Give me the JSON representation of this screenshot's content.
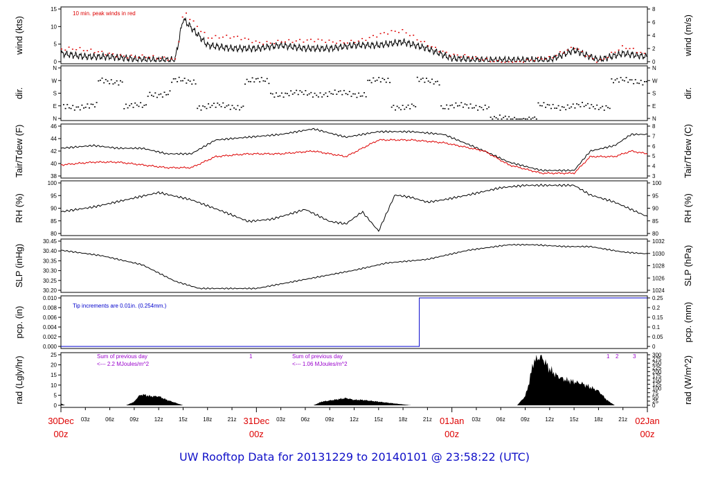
{
  "footer_title": "UW Rooftop Data for 20131229  to  20140101 @ 23:58:22  (UTC)",
  "colors": {
    "primary": "#000000",
    "accent_red": "#dd0000",
    "blue": "#0000cc",
    "purple": "#9900cc"
  },
  "time_axis": {
    "hour_ticks": [
      "03z",
      "06z",
      "09z",
      "12z",
      "15z",
      "18z",
      "21z"
    ],
    "day_labels": [
      {
        "date": "30Dec",
        "hour": "00z"
      },
      {
        "date": "31Dec",
        "hour": "00z"
      },
      {
        "date": "01Jan",
        "hour": "00z"
      },
      {
        "date": "02Jan",
        "hour": "00z"
      }
    ]
  },
  "chart_data": [
    {
      "type": "line",
      "id": "wind",
      "ylabel_left": "wind (kts)",
      "ylabel_right": "wind (m/s)",
      "ylim": [
        0,
        16
      ],
      "yticks_left": [
        "0",
        "5",
        "10",
        "15"
      ],
      "yticks_right": [
        "0",
        "2",
        "4",
        "6",
        "8"
      ],
      "annotation": "10 min. peak winds in red",
      "series": [
        {
          "name": "wind",
          "color": "#000000",
          "x_hours": [
            0,
            6,
            12,
            18,
            24,
            28,
            30,
            36,
            42,
            48,
            54,
            60,
            66,
            72,
            78,
            84,
            90,
            96,
            102,
            108,
            114,
            120,
            126,
            132,
            138,
            144
          ],
          "values": [
            2.5,
            1.5,
            1.5,
            0.8,
            0.5,
            0.5,
            13,
            5,
            4,
            4,
            5,
            4,
            4,
            5,
            5,
            6,
            4,
            1,
            0.5,
            0.5,
            0.5,
            0.5,
            3.5,
            0.5,
            2.5,
            1.5
          ]
        },
        {
          "name": "peak",
          "color": "#dd0000",
          "x_hours": [
            0,
            6,
            12,
            18,
            24,
            28,
            30,
            36,
            42,
            48,
            54,
            60,
            66,
            72,
            78,
            84,
            90,
            96,
            102,
            108,
            114,
            120,
            126,
            132,
            138,
            144
          ],
          "values": [
            4,
            3,
            3,
            2,
            0.5,
            0.5,
            16,
            8,
            7,
            6,
            7,
            6,
            6,
            7,
            8,
            9,
            6,
            2,
            0.5,
            0.5,
            0.5,
            0.5,
            5,
            0.5,
            4,
            2
          ]
        }
      ]
    },
    {
      "type": "scatter",
      "id": "dir",
      "ylabel_left": "dir.",
      "ylabel_right": "dir.",
      "yticks_left": [
        "N",
        "E",
        "S",
        "W",
        "N"
      ],
      "yticks_right": [
        "N",
        "E",
        "S",
        "W",
        "N"
      ],
      "series": [
        {
          "name": "dir",
          "color": "#000000",
          "x_hours": [
            0,
            6,
            12,
            18,
            24,
            30,
            36,
            42,
            48,
            54,
            60,
            66,
            72,
            78,
            84,
            90,
            96,
            102,
            108,
            114,
            120,
            126,
            132,
            138,
            144
          ],
          "values": [
            "E",
            "E",
            "W",
            "E",
            "S",
            "W",
            "E",
            "E",
            "W",
            "S",
            "S",
            "S",
            "S",
            "W",
            "E",
            "W",
            "E",
            "E",
            "N",
            "N",
            "E",
            "E",
            "E",
            "W",
            "W"
          ]
        }
      ]
    },
    {
      "type": "line",
      "id": "temp",
      "ylabel_left": "Tair/Tdew (F)",
      "ylabel_right": "Tair/Tdew (C)",
      "ylim": [
        37.5,
        46.5
      ],
      "yticks_left": [
        "38",
        "40",
        "42",
        "44",
        "46"
      ],
      "yticks_right": [
        "3",
        "4",
        "5",
        "6",
        "7",
        "8"
      ],
      "series": [
        {
          "name": "Tair",
          "color": "#000000",
          "x_hours": [
            0,
            8,
            14,
            20,
            26,
            32,
            38,
            46,
            54,
            62,
            70,
            78,
            86,
            94,
            104,
            110,
            118,
            126,
            130,
            136,
            140,
            144
          ],
          "values": [
            42.5,
            43,
            42.5,
            42.5,
            41.5,
            41.5,
            44,
            44.5,
            45,
            46,
            44.5,
            45.5,
            45.5,
            45,
            42,
            40,
            38.5,
            38.5,
            42,
            43,
            45,
            45
          ]
        },
        {
          "name": "Tdew",
          "color": "#dd0000",
          "x_hours": [
            0,
            8,
            14,
            20,
            26,
            32,
            38,
            46,
            54,
            62,
            70,
            78,
            86,
            94,
            104,
            110,
            118,
            126,
            130,
            136,
            140,
            144
          ],
          "values": [
            39.5,
            40,
            40,
            39.5,
            39,
            39,
            41,
            41.5,
            41.5,
            42,
            41,
            44,
            44,
            43.5,
            42,
            39.5,
            38,
            38,
            41,
            41,
            42,
            41.5
          ]
        }
      ]
    },
    {
      "type": "line",
      "id": "rh",
      "ylabel_left": "RH (%)",
      "ylabel_right": "RH (%)",
      "ylim": [
        79,
        100
      ],
      "yticks_left": [
        "80",
        "85",
        "90",
        "95",
        "100"
      ],
      "yticks_right": [
        "80",
        "85",
        "90",
        "95",
        "100"
      ],
      "series": [
        {
          "name": "RH",
          "color": "#000000",
          "x_hours": [
            0,
            8,
            16,
            24,
            32,
            40,
            46,
            52,
            60,
            66,
            70,
            74,
            78,
            82,
            86,
            90,
            94,
            100,
            108,
            114,
            120,
            126,
            130,
            136,
            144
          ],
          "values": [
            88,
            90,
            93,
            96,
            93,
            88,
            84,
            85,
            89,
            84,
            83,
            88,
            80,
            95,
            94,
            92,
            93,
            95,
            98,
            99,
            99,
            99,
            95,
            92,
            86
          ]
        }
      ]
    },
    {
      "type": "line",
      "id": "slp",
      "ylabel_left": "SLP (inHg)",
      "ylabel_right": "SLP (hPa)",
      "ylim": [
        30.2,
        30.47
      ],
      "yticks_left": [
        "30.20",
        "30.25",
        "30.30",
        "30.35",
        "30.40",
        "30.45"
      ],
      "yticks_right": [
        "1024",
        "1026",
        "1028",
        "1030",
        "1032"
      ],
      "series": [
        {
          "name": "SLP",
          "color": "#000000",
          "x_hours": [
            0,
            10,
            20,
            28,
            34,
            40,
            48,
            60,
            72,
            80,
            90,
            100,
            110,
            116,
            124,
            130,
            138,
            144
          ],
          "values": [
            30.42,
            30.39,
            30.34,
            30.25,
            30.21,
            30.21,
            30.21,
            30.26,
            30.31,
            30.35,
            30.37,
            30.42,
            30.45,
            30.45,
            30.44,
            30.44,
            30.41,
            30.4
          ]
        }
      ]
    },
    {
      "type": "line",
      "id": "pcp",
      "ylabel_left": "pcp. (in)",
      "ylabel_right": "pcp. (mm)",
      "ylim": [
        0,
        0.01
      ],
      "yticks_left": [
        "0.000",
        "0.002",
        "0.004",
        "0.006",
        "0.008",
        "0.010"
      ],
      "yticks_right": [
        "0",
        "0.05",
        "0.1",
        "0.15",
        "0.2",
        "0.25"
      ],
      "annotation": "Tip increments are 0.01in. (0.254mm.)",
      "series": [
        {
          "name": "pcp",
          "color": "#0000cc",
          "x_hours": [
            0,
            88,
            88,
            144
          ],
          "values": [
            0,
            0,
            0.01,
            0.01
          ]
        }
      ]
    },
    {
      "type": "area",
      "id": "rad",
      "ylabel_left": "rad (Lgly/hr)",
      "ylabel_right": "rad (W/m^2)",
      "ylim": [
        0,
        28
      ],
      "yticks_left": [
        "0",
        "5",
        "10",
        "15",
        "20",
        "25"
      ],
      "yticks_right": [
        "0",
        "25",
        "50",
        "75",
        "100",
        "125",
        "150",
        "175",
        "200",
        "225",
        "250",
        "275",
        "300"
      ],
      "annotations": [
        "Sum of previous day",
        "<--- 2.2 MJoules/m^2",
        "1",
        "Sum of previous day",
        "<--- 1.06 MJoules/m^2",
        "1",
        "2",
        "3"
      ],
      "series": [
        {
          "name": "rad",
          "color": "#000000",
          "x_hours": [
            0,
            1,
            16,
            18,
            19,
            20,
            22,
            24,
            26,
            30,
            62,
            64,
            67,
            70,
            72,
            74,
            86,
            112,
            114,
            115,
            116,
            117,
            118,
            120,
            122,
            124,
            126,
            128,
            130,
            132,
            134,
            136
          ],
          "values": [
            1,
            0,
            0,
            2,
            5,
            6,
            5,
            5,
            3,
            0,
            0,
            2,
            3,
            4,
            3,
            3,
            0,
            0,
            5,
            13,
            24,
            26,
            27,
            20,
            16,
            14,
            13,
            12,
            10,
            8,
            3,
            0
          ]
        }
      ]
    }
  ]
}
